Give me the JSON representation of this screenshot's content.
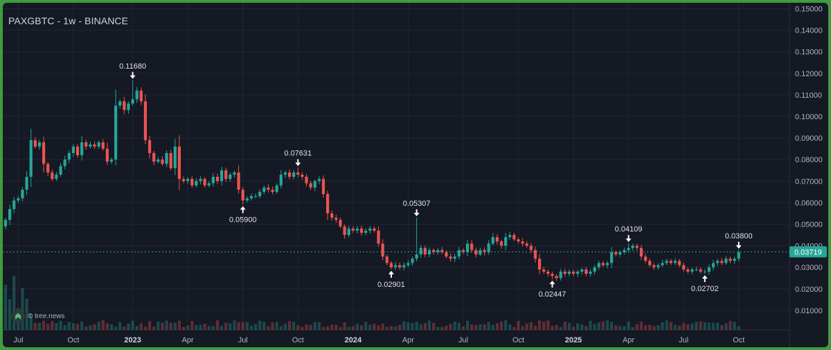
{
  "chart_data": {
    "type": "candlestick",
    "title": "PAXGBTC - 1w - BINANCE",
    "watermark": "© tree.news",
    "y_ticks": [
      "0.15000",
      "0.14000",
      "0.13000",
      "0.12000",
      "0.11000",
      "0.10000",
      "0.09000",
      "0.08000",
      "0.07000",
      "0.06000",
      "0.05000",
      "0.04000",
      "0.03000",
      "0.02000",
      "0.01000"
    ],
    "ylim": [
      0.0,
      0.152
    ],
    "x_ticks": [
      {
        "label": "Jul",
        "week": 3,
        "bold": false
      },
      {
        "label": "Oct",
        "week": 16,
        "bold": false
      },
      {
        "label": "2023",
        "week": 30,
        "bold": true
      },
      {
        "label": "Apr",
        "week": 43,
        "bold": false
      },
      {
        "label": "Jul",
        "week": 56,
        "bold": false
      },
      {
        "label": "Oct",
        "week": 69,
        "bold": false
      },
      {
        "label": "2024",
        "week": 82,
        "bold": true
      },
      {
        "label": "Apr",
        "week": 95,
        "bold": false
      },
      {
        "label": "Jul",
        "week": 108,
        "bold": false
      },
      {
        "label": "Oct",
        "week": 121,
        "bold": false
      },
      {
        "label": "2025",
        "week": 134,
        "bold": true
      },
      {
        "label": "Apr",
        "week": 147,
        "bold": false
      },
      {
        "label": "Jul",
        "week": 160,
        "bold": false
      },
      {
        "label": "Oct",
        "week": 173,
        "bold": false
      }
    ],
    "last_price": "0.03719",
    "last_price_value": 0.03719,
    "annotations": [
      {
        "label": "0.11680",
        "value": 0.1168,
        "week": 30,
        "position": "above"
      },
      {
        "label": "0.05900",
        "value": 0.059,
        "week": 56,
        "position": "below"
      },
      {
        "label": "0.07631",
        "value": 0.07631,
        "week": 69,
        "position": "above"
      },
      {
        "label": "0.02901",
        "value": 0.02901,
        "week": 91,
        "position": "below"
      },
      {
        "label": "0.05307",
        "value": 0.05307,
        "week": 97,
        "position": "above"
      },
      {
        "label": "0.02447",
        "value": 0.02447,
        "week": 129,
        "position": "below"
      },
      {
        "label": "0.04109",
        "value": 0.04109,
        "week": 147,
        "position": "above"
      },
      {
        "label": "0.02702",
        "value": 0.02702,
        "week": 165,
        "position": "below"
      },
      {
        "label": "0.03800",
        "value": 0.038,
        "week": 173,
        "position": "above"
      }
    ],
    "colors": {
      "up": "#26a69a",
      "down": "#ef5350",
      "grid": "#222633",
      "axis_text": "#b2b5be",
      "last_price_bg": "#26a69a",
      "frame": "#3f9c3f",
      "background": "#151924"
    },
    "closes": [
      0.052,
      0.057,
      0.061,
      0.062,
      0.066,
      0.072,
      0.089,
      0.086,
      0.088,
      0.078,
      0.074,
      0.071,
      0.073,
      0.077,
      0.08,
      0.083,
      0.086,
      0.082,
      0.088,
      0.086,
      0.087,
      0.086,
      0.088,
      0.085,
      0.079,
      0.08,
      0.105,
      0.107,
      0.103,
      0.106,
      0.108,
      0.112,
      0.107,
      0.089,
      0.083,
      0.079,
      0.08,
      0.078,
      0.083,
      0.076,
      0.086,
      0.071,
      0.07,
      0.071,
      0.068,
      0.07,
      0.071,
      0.068,
      0.069,
      0.072,
      0.07,
      0.075,
      0.071,
      0.073,
      0.074,
      0.066,
      0.061,
      0.062,
      0.063,
      0.063,
      0.065,
      0.067,
      0.066,
      0.065,
      0.068,
      0.073,
      0.074,
      0.072,
      0.074,
      0.073,
      0.072,
      0.069,
      0.067,
      0.07,
      0.071,
      0.064,
      0.055,
      0.053,
      0.052,
      0.049,
      0.045,
      0.048,
      0.047,
      0.048,
      0.046,
      0.047,
      0.048,
      0.047,
      0.041,
      0.035,
      0.032,
      0.03,
      0.031,
      0.03,
      0.031,
      0.032,
      0.034,
      0.036,
      0.039,
      0.036,
      0.038,
      0.037,
      0.038,
      0.037,
      0.035,
      0.034,
      0.035,
      0.038,
      0.037,
      0.041,
      0.038,
      0.036,
      0.038,
      0.037,
      0.041,
      0.044,
      0.042,
      0.04,
      0.044,
      0.045,
      0.043,
      0.042,
      0.041,
      0.04,
      0.038,
      0.034,
      0.029,
      0.028,
      0.027,
      0.026,
      0.025,
      0.028,
      0.027,
      0.028,
      0.027,
      0.028,
      0.029,
      0.027,
      0.028,
      0.03,
      0.032,
      0.031,
      0.032,
      0.037,
      0.036,
      0.037,
      0.038,
      0.039,
      0.04,
      0.039,
      0.035,
      0.033,
      0.031,
      0.03,
      0.031,
      0.032,
      0.033,
      0.032,
      0.033,
      0.031,
      0.029,
      0.028,
      0.029,
      0.029,
      0.028,
      0.028,
      0.03,
      0.032,
      0.033,
      0.032,
      0.034,
      0.033,
      0.034,
      0.037
    ]
  }
}
